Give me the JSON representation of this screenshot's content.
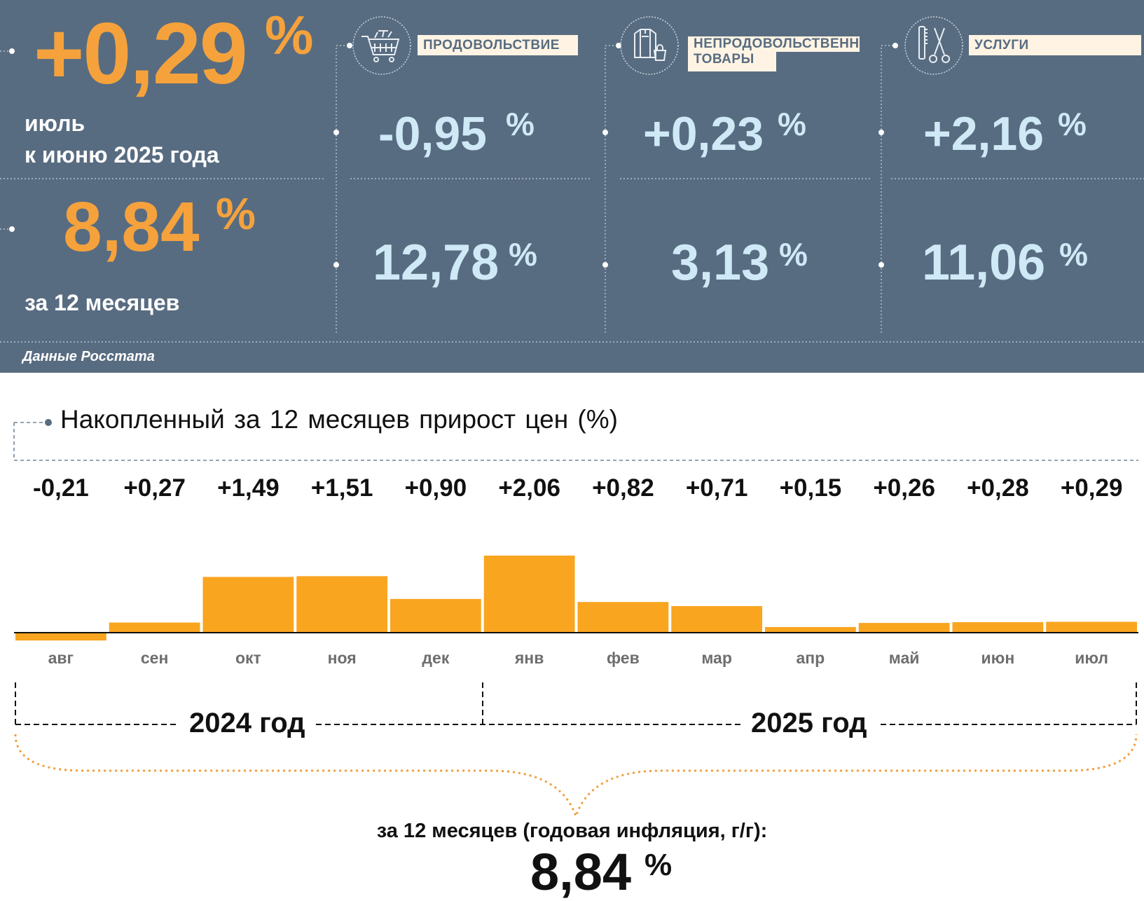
{
  "header": {
    "month_change": {
      "value": "+0,29",
      "unit": "%",
      "caption_line1": "июль",
      "caption_line2": "к июню 2025 года"
    },
    "annual": {
      "value": "8,84",
      "unit": "%",
      "caption": "за 12 месяцев"
    },
    "source": "Данные Росстата"
  },
  "categories": [
    {
      "label": "ПРОДОВОЛЬСТВИЕ",
      "icon": "shopping-cart-icon",
      "month": "-0,95",
      "annual": "12,78",
      "unit": "%"
    },
    {
      "label_line1": "НЕПРОДОВОЛЬСТВЕННЫЕ",
      "label_line2": "ТОВАРЫ",
      "icon": "clothes-bag-icon",
      "month": "+0,23",
      "annual": "3,13",
      "unit": "%"
    },
    {
      "label": "УСЛУГИ",
      "icon": "comb-scissors-icon",
      "month": "+2,16",
      "annual": "11,06",
      "unit": "%"
    }
  ],
  "chart_title": "Накопленный за 12 месяцев прирост цен (%)",
  "chart_data": {
    "type": "bar",
    "categories": [
      "авг",
      "сен",
      "окт",
      "ноя",
      "дек",
      "янв",
      "фев",
      "мар",
      "апр",
      "май",
      "июн",
      "июл"
    ],
    "values": [
      -0.21,
      0.27,
      1.49,
      1.51,
      0.9,
      2.06,
      0.82,
      0.71,
      0.15,
      0.26,
      0.28,
      0.29
    ],
    "value_labels": [
      "-0,21",
      "+0,27",
      "+1,49",
      "+1,51",
      "+0,90",
      "+2,06",
      "+0,82",
      "+0,71",
      "+0,15",
      "+0,26",
      "+0,28",
      "+0,29"
    ],
    "bar_color": "#f9a51f",
    "years": [
      "2024 год",
      "2025 год"
    ]
  },
  "summary": {
    "caption": "за 12 месяцев (годовая инфляция, г/г):",
    "value": "8,84",
    "unit": "%"
  },
  "colors": {
    "panel": "#586c81",
    "accent": "#f5a23c",
    "light_value": "#cfe9f6",
    "label_bg": "#fff4e4"
  }
}
